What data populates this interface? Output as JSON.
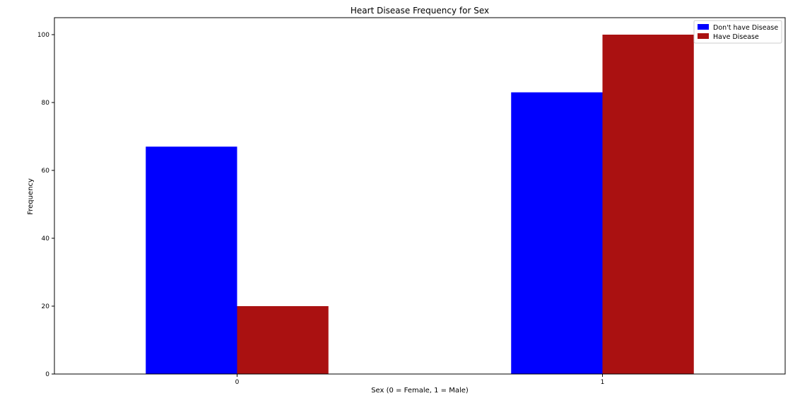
{
  "chart_data": {
    "type": "bar",
    "title": "Heart Disease Frequency for Sex",
    "xlabel": "Sex (0 = Female, 1 = Male)",
    "ylabel": "Frequency",
    "categories": [
      "0",
      "1"
    ],
    "series": [
      {
        "name": "Don't have Disease",
        "values": [
          67,
          83
        ],
        "color": "#0000ff"
      },
      {
        "name": "Have Disease",
        "values": [
          20,
          100
        ],
        "color": "#aa1111"
      }
    ],
    "ylim": [
      0,
      105
    ],
    "yticks": [
      0,
      20,
      40,
      60,
      80,
      100
    ],
    "grid": false,
    "legend_position": "top-right"
  }
}
